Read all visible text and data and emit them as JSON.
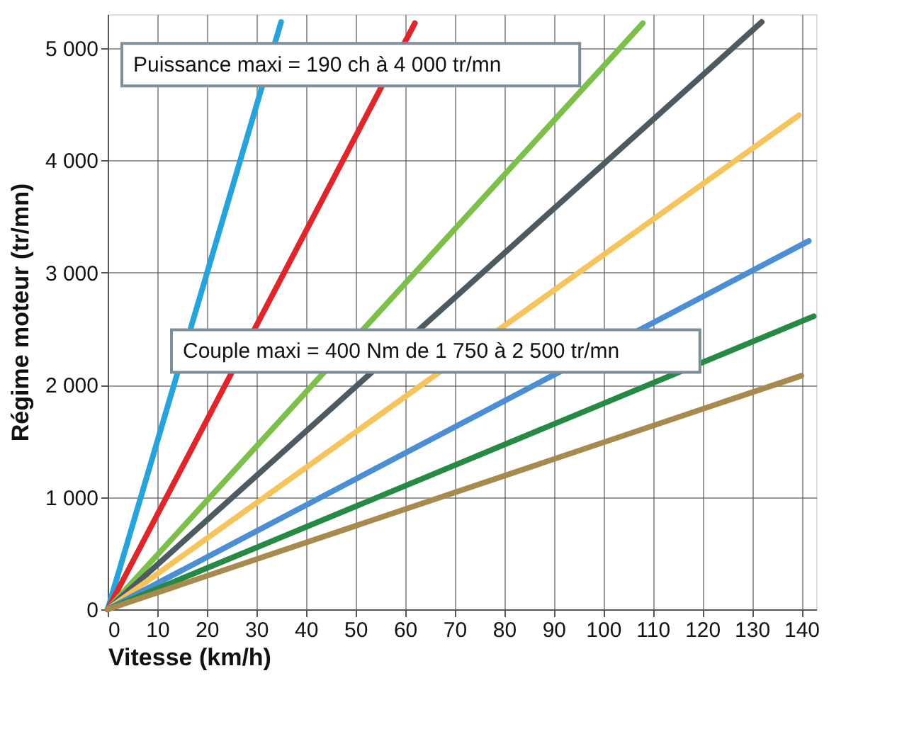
{
  "chart_data": {
    "type": "line",
    "xlabel": "Vitesse (km/h)",
    "ylabel": "Régime moteur (tr/mn)",
    "xlim": [
      0,
      143
    ],
    "ylim": [
      0,
      5300
    ],
    "xticks": [
      0,
      10,
      20,
      30,
      40,
      50,
      60,
      70,
      80,
      90,
      100,
      110,
      120,
      130,
      140
    ],
    "yticks": [
      0,
      {
        "value": 1000,
        "label": "1 000"
      },
      {
        "value": 2000,
        "label": "2 000"
      },
      {
        "value": 3000,
        "label": "3 000"
      },
      {
        "value": 4000,
        "label": "4 000"
      },
      {
        "value": 5000,
        "label": "5 000"
      }
    ],
    "grid": true,
    "marker": "none",
    "line_style": "solid",
    "annotations": [
      "Puissance maxi = 190 ch à 4 000 tr/mn",
      "Couple maxi = 400 Nm de 1 750 à 2 500 tr/mn"
    ],
    "series": [
      {
        "color": "#27a3dc",
        "x": [
          0,
          35
        ],
        "values": [
          0,
          5230
        ]
      },
      {
        "color": "#e0262a",
        "x": [
          0,
          62
        ],
        "values": [
          0,
          5220
        ]
      },
      {
        "color": "#7cc04a",
        "x": [
          0,
          108
        ],
        "values": [
          0,
          5220
        ]
      },
      {
        "color": "#4d5a62",
        "x": [
          0,
          132
        ],
        "values": [
          0,
          5230
        ]
      },
      {
        "color": "#f7c35c",
        "x": [
          0,
          139.5
        ],
        "values": [
          0,
          4400
        ]
      },
      {
        "color": "#4a8fd4",
        "x": [
          0,
          141.5
        ],
        "values": [
          0,
          3280
        ]
      },
      {
        "color": "#268a45",
        "x": [
          0,
          142.5
        ],
        "values": [
          0,
          2610
        ]
      },
      {
        "color": "#a88a4e",
        "x": [
          0,
          140
        ],
        "values": [
          0,
          2080
        ]
      }
    ]
  }
}
